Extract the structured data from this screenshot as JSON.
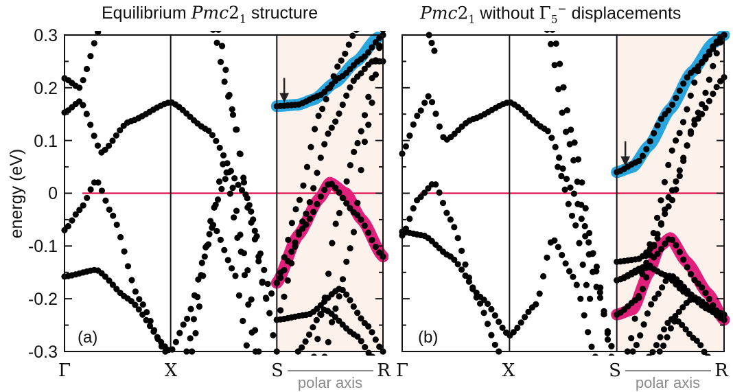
{
  "colors": {
    "band_dot": "#000000",
    "fermi_line": "#e0114e",
    "highlight_cb": "#2aa6df",
    "highlight_vb": "#e0207a",
    "polar_region": "#fdf1ec",
    "polar_label": "#8a8a8a"
  },
  "figure": {
    "ylabel": "energy (eV)",
    "y_ticks": [
      "0.3",
      "0.2",
      "0.1",
      "0",
      "-0.1",
      "-0.2",
      "-0.3"
    ],
    "k_labels": [
      "Γ",
      "X",
      "S",
      "R"
    ],
    "polar_axis_label": "polar axis"
  },
  "panels": [
    {
      "tag": "(a)",
      "title_pre": "Equilibrium ",
      "title_space": "Pmc",
      "title_num": "2",
      "title_sub": "1",
      "title_post": " structure"
    },
    {
      "tag": "(b)",
      "title_space": "Pmc",
      "title_num": "2",
      "title_sub": "1",
      "title_mid": " without ",
      "title_gamma": "Γ",
      "title_gamma_sub": "5",
      "title_gamma_sup": "−",
      "title_post": " displacements"
    }
  ],
  "chart_data": [
    {
      "type": "scatter",
      "title": "Equilibrium Pmc21 structure",
      "xlabel": "",
      "ylabel": "energy (eV)",
      "xlim": [
        0,
        3
      ],
      "ylim": [
        -0.3,
        0.3
      ],
      "x_ticks": [
        {
          "x": 0,
          "label": "Γ"
        },
        {
          "x": 1,
          "label": "X"
        },
        {
          "x": 2,
          "label": "S"
        },
        {
          "x": 3,
          "label": "R"
        }
      ],
      "y_ticks": [
        -0.3,
        -0.2,
        -0.1,
        0,
        0.1,
        0.2,
        0.3
      ],
      "fermi_level": 0,
      "polar_region": [
        2,
        3
      ],
      "annotations": [
        {
          "text": "(a)"
        },
        {
          "text": "polar axis"
        }
      ],
      "arrow_at": {
        "x": 2.07,
        "y": 0.19
      },
      "highlight_bands": [
        {
          "color": "cb",
          "points": [
            [
              2,
              0.165
            ],
            [
              2.2,
              0.168
            ],
            [
              2.35,
              0.178
            ],
            [
              2.55,
              0.21
            ],
            [
              2.75,
              0.25
            ],
            [
              2.95,
              0.295
            ]
          ]
        },
        {
          "color": "vb",
          "points": [
            [
              2,
              -0.17
            ],
            [
              2.2,
              -0.08
            ],
            [
              2.4,
              -0.01
            ],
            [
              2.5,
              0.02
            ],
            [
              2.65,
              0.0
            ],
            [
              2.8,
              -0.05
            ],
            [
              3,
              -0.12
            ]
          ]
        }
      ],
      "bands": [
        [
          [
            0,
            0.153
          ],
          [
            0.15,
            0.175
          ],
          [
            0.35,
            0.077
          ],
          [
            0.6,
            0.135
          ],
          [
            1,
            0.173
          ],
          [
            1.35,
            0.12
          ],
          [
            1.7,
            0.0
          ],
          [
            1.95,
            -0.19
          ]
        ],
        [
          [
            0,
            0.218
          ],
          [
            0.14,
            0.2
          ],
          [
            0.35,
            0.32
          ]
        ],
        [
          [
            0,
            -0.07
          ],
          [
            0.15,
            -0.03
          ],
          [
            0.3,
            0.025
          ],
          [
            0.45,
            -0.04
          ],
          [
            0.7,
            -0.2
          ],
          [
            0.95,
            -0.3
          ]
        ],
        [
          [
            0,
            -0.158
          ],
          [
            0.3,
            -0.145
          ],
          [
            0.6,
            -0.2
          ],
          [
            1,
            -0.3
          ],
          [
            1.15,
            -0.24
          ],
          [
            1.4,
            -0.06
          ],
          [
            1.6,
            -0.15
          ],
          [
            1.75,
            -0.32
          ]
        ],
        [
          [
            1.15,
            -0.3
          ],
          [
            1.35,
            -0.1
          ],
          [
            1.5,
            0.06
          ],
          [
            1.65,
            -0.1
          ],
          [
            1.8,
            -0.3
          ]
        ],
        [
          [
            1.2,
            -0.3
          ],
          [
            1.4,
            -0.03
          ],
          [
            1.55,
            0.04
          ],
          [
            1.7,
            -0.12
          ],
          [
            1.83,
            -0.3
          ]
        ],
        [
          [
            1.45,
            0.31
          ],
          [
            1.6,
            0.14
          ],
          [
            1.75,
            -0.05
          ],
          [
            1.9,
            -0.2
          ],
          [
            2,
            -0.3
          ]
        ],
        [
          [
            1.4,
            0.31
          ],
          [
            1.55,
            0.18
          ],
          [
            1.75,
            -0.03
          ],
          [
            1.9,
            -0.2
          ]
        ],
        [
          [
            2,
            0.165
          ],
          [
            2.2,
            0.168
          ],
          [
            2.4,
            0.185
          ],
          [
            2.6,
            0.22
          ],
          [
            2.8,
            0.255
          ],
          [
            3,
            0.3
          ]
        ],
        [
          [
            2,
            -0.17
          ],
          [
            2.25,
            -0.065
          ],
          [
            2.5,
            0.02
          ],
          [
            2.75,
            -0.04
          ],
          [
            3,
            -0.12
          ]
        ],
        [
          [
            2,
            -0.17
          ],
          [
            2.2,
            -0.02
          ],
          [
            2.4,
            0.15
          ],
          [
            2.6,
            0.25
          ],
          [
            2.75,
            0.31
          ]
        ],
        [
          [
            2,
            -0.24
          ],
          [
            2.25,
            -0.05
          ],
          [
            2.5,
            0.12
          ],
          [
            2.75,
            0.22
          ],
          [
            2.9,
            0.25
          ],
          [
            3,
            0.25
          ]
        ],
        [
          [
            2,
            -0.24
          ],
          [
            2.3,
            -0.23
          ],
          [
            2.6,
            -0.18
          ],
          [
            2.85,
            -0.25
          ],
          [
            3,
            -0.3
          ]
        ],
        [
          [
            2.2,
            -0.3
          ],
          [
            2.45,
            -0.22
          ],
          [
            2.75,
            -0.27
          ],
          [
            2.9,
            -0.31
          ]
        ],
        [
          [
            2.35,
            -0.31
          ],
          [
            2.45,
            -0.2
          ],
          [
            2.55,
            -0.06
          ],
          [
            2.75,
            0.09
          ],
          [
            3,
            0.3
          ]
        ],
        [
          [
            2.45,
            -0.31
          ],
          [
            2.55,
            -0.22
          ],
          [
            2.7,
            -0.1
          ],
          [
            2.85,
            0.12
          ],
          [
            3,
            0.31
          ]
        ]
      ]
    },
    {
      "type": "scatter",
      "title": "Pmc21 without Γ5− displacements",
      "xlabel": "",
      "ylabel": "energy (eV)",
      "xlim": [
        0,
        3
      ],
      "ylim": [
        -0.3,
        0.3
      ],
      "x_ticks": [
        {
          "x": 0,
          "label": "Γ"
        },
        {
          "x": 1,
          "label": "X"
        },
        {
          "x": 2,
          "label": "S"
        },
        {
          "x": 3,
          "label": "R"
        }
      ],
      "y_ticks": [
        -0.3,
        -0.2,
        -0.1,
        0,
        0.1,
        0.2,
        0.3
      ],
      "fermi_level": 0,
      "polar_region": [
        2,
        3
      ],
      "annotations": [
        {
          "text": "(b)"
        },
        {
          "text": "polar axis"
        }
      ],
      "arrow_at": {
        "x": 2.08,
        "y": 0.07
      },
      "highlight_bands": [
        {
          "color": "cb",
          "points": [
            [
              2,
              0.04
            ],
            [
              2.15,
              0.05
            ],
            [
              2.3,
              0.09
            ],
            [
              2.5,
              0.16
            ],
            [
              2.7,
              0.23
            ],
            [
              2.9,
              0.285
            ],
            [
              3,
              0.3
            ]
          ]
        },
        {
          "color": "vb",
          "points": [
            [
              2,
              -0.23
            ],
            [
              2.15,
              -0.22
            ],
            [
              2.3,
              -0.15
            ],
            [
              2.4,
              -0.1
            ],
            [
              2.5,
              -0.085
            ],
            [
              2.65,
              -0.13
            ],
            [
              2.85,
              -0.19
            ],
            [
              3,
              -0.24
            ]
          ]
        }
      ],
      "bands": [
        [
          [
            0,
            0.075
          ],
          [
            0.15,
            0.15
          ],
          [
            0.25,
            0.185
          ],
          [
            0.4,
            0.1
          ],
          [
            0.65,
            0.14
          ],
          [
            1,
            0.173
          ],
          [
            1.35,
            0.12
          ],
          [
            1.6,
            0.0
          ],
          [
            1.85,
            -0.2
          ],
          [
            1.95,
            -0.29
          ]
        ],
        [
          [
            0.25,
            0.3
          ],
          [
            0.3,
            0.27
          ]
        ],
        [
          [
            0,
            -0.08
          ],
          [
            0.15,
            -0.01
          ],
          [
            0.3,
            0.02
          ],
          [
            0.45,
            -0.05
          ],
          [
            0.7,
            -0.2
          ],
          [
            0.9,
            -0.3
          ]
        ],
        [
          [
            0,
            -0.073
          ],
          [
            0.2,
            -0.08
          ],
          [
            0.45,
            -0.12
          ],
          [
            0.75,
            -0.2
          ],
          [
            1,
            -0.27
          ],
          [
            1.25,
            -0.21
          ],
          [
            1.4,
            -0.085
          ],
          [
            1.6,
            -0.16
          ],
          [
            1.8,
            -0.31
          ]
        ],
        [
          [
            1.35,
            0.31
          ],
          [
            1.55,
            0.1
          ],
          [
            1.75,
            -0.1
          ],
          [
            1.95,
            -0.29
          ]
        ],
        [
          [
            1.4,
            0.31
          ],
          [
            1.6,
            0.1
          ],
          [
            1.8,
            -0.13
          ],
          [
            1.95,
            -0.31
          ]
        ],
        [
          [
            1.45,
            0.05
          ],
          [
            1.6,
            -0.05
          ],
          [
            1.75,
            -0.2
          ]
        ],
        [
          [
            2,
            0.04
          ],
          [
            2.2,
            0.06
          ],
          [
            2.45,
            0.15
          ],
          [
            2.7,
            0.23
          ],
          [
            3,
            0.3
          ]
        ],
        [
          [
            2,
            -0.23
          ],
          [
            2.2,
            -0.2
          ],
          [
            2.35,
            -0.12
          ],
          [
            2.5,
            -0.085
          ],
          [
            2.75,
            -0.17
          ],
          [
            3,
            -0.24
          ]
        ],
        [
          [
            2,
            -0.13
          ],
          [
            2.2,
            -0.125
          ],
          [
            2.35,
            -0.1
          ],
          [
            2.5,
            0.0
          ],
          [
            2.75,
            0.14
          ],
          [
            3,
            0.22
          ]
        ],
        [
          [
            2,
            -0.165
          ],
          [
            2.25,
            -0.14
          ],
          [
            2.5,
            -0.02
          ],
          [
            2.75,
            0.15
          ],
          [
            3,
            0.3
          ]
        ],
        [
          [
            2,
            -0.165
          ],
          [
            2.3,
            -0.14
          ],
          [
            2.45,
            -0.155
          ],
          [
            2.65,
            -0.19
          ],
          [
            2.85,
            -0.22
          ],
          [
            3,
            -0.24
          ]
        ],
        [
          [
            2.15,
            -0.3
          ],
          [
            2.35,
            -0.2
          ],
          [
            2.5,
            -0.155
          ],
          [
            2.75,
            -0.2
          ],
          [
            3,
            -0.24
          ]
        ],
        [
          [
            2.1,
            -0.3
          ],
          [
            2.3,
            -0.1
          ],
          [
            2.55,
            0.1
          ],
          [
            2.8,
            0.25
          ],
          [
            3,
            0.3
          ]
        ],
        [
          [
            2.3,
            -0.31
          ],
          [
            2.5,
            -0.24
          ],
          [
            2.7,
            -0.2
          ],
          [
            2.9,
            -0.22
          ],
          [
            3,
            -0.23
          ]
        ],
        [
          [
            2.4,
            -0.3
          ],
          [
            2.55,
            -0.24
          ],
          [
            2.75,
            -0.28
          ],
          [
            2.85,
            -0.31
          ]
        ]
      ]
    }
  ]
}
